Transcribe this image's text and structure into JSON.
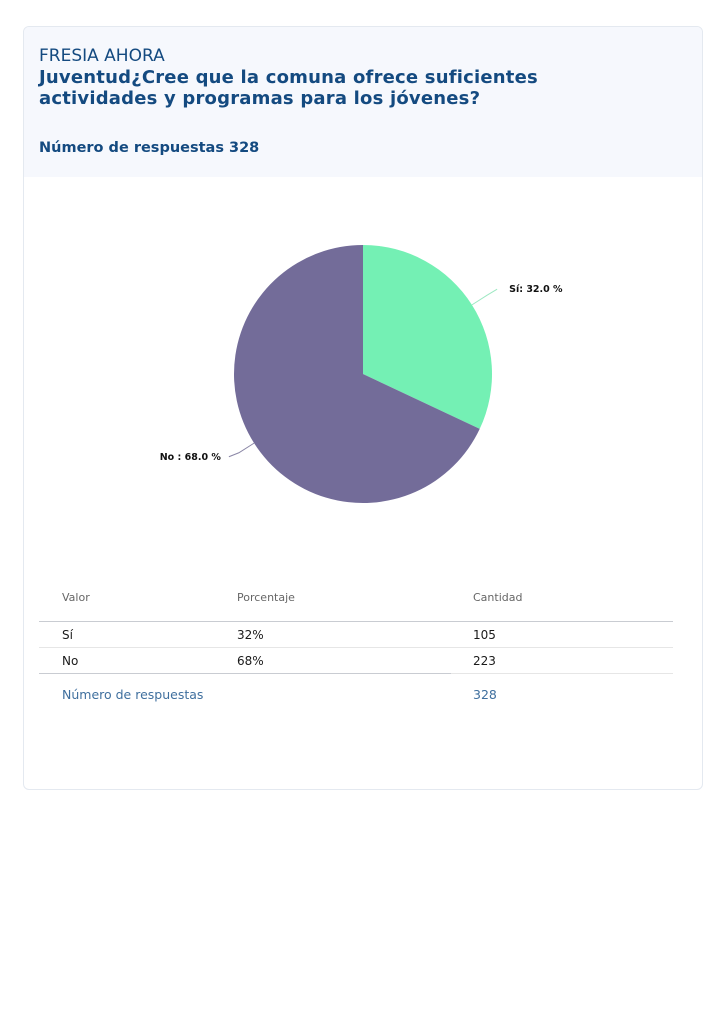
{
  "header": {
    "org": "FRESIA AHORA",
    "question": "Juventud¿Cree que la comuna ofrece suficientes actividades y programas para los jóvenes?",
    "responses_label": "Número de respuestas 328"
  },
  "chart_data": {
    "type": "pie",
    "slices": [
      {
        "label": "Sí",
        "value": 32.0,
        "display": "Sí: 32.0 %",
        "color": "#74f0b4"
      },
      {
        "label": "No",
        "value": 68.0,
        "display": "No : 68.0 %",
        "color": "#736c99"
      }
    ]
  },
  "table": {
    "headers": [
      "Valor",
      "Porcentaje",
      "Cantidad"
    ],
    "rows": [
      {
        "valor": "Sí",
        "porcentaje": "32%",
        "cantidad": "105"
      },
      {
        "valor": "No",
        "porcentaje": "68%",
        "cantidad": "223"
      }
    ],
    "footer_label": "Número de respuestas",
    "footer_value": "328"
  }
}
